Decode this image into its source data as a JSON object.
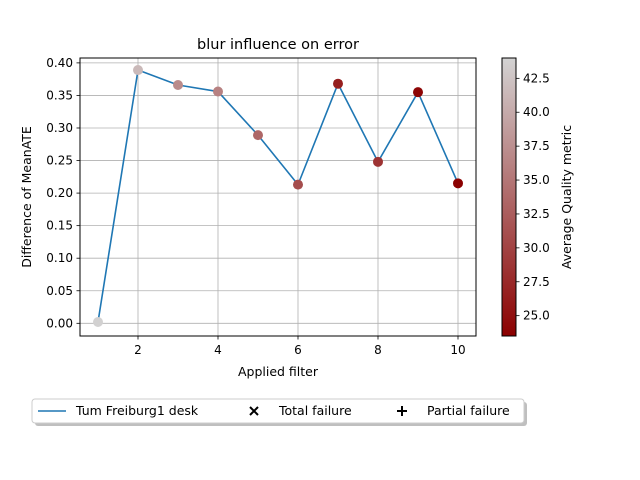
{
  "chart_data": {
    "type": "line",
    "title": "blur influence on error",
    "xlabel": "Applied filter",
    "ylabel": "Difference of MeanATE",
    "xlim": [
      0.55,
      10.45
    ],
    "ylim": [
      -0.0195,
      0.4075
    ],
    "xticks": [
      2,
      4,
      6,
      8,
      10
    ],
    "yticks": [
      0.0,
      0.05,
      0.1,
      0.15,
      0.2,
      0.25,
      0.3,
      0.35,
      0.4
    ],
    "ytick_labels": [
      "0.00",
      "0.05",
      "0.10",
      "0.15",
      "0.20",
      "0.25",
      "0.30",
      "0.35",
      "0.40"
    ],
    "grid": true,
    "series": [
      {
        "name": "Tum Freiburg1 desk",
        "color": "#1f77b4",
        "x": [
          1,
          2,
          3,
          4,
          5,
          6,
          7,
          8,
          9,
          10
        ],
        "y": [
          0.002,
          0.389,
          0.366,
          0.356,
          0.289,
          0.213,
          0.368,
          0.248,
          0.355,
          0.215
        ],
        "quality_metric": [
          43.8,
          41.5,
          37.0,
          36.0,
          33.5,
          31.0,
          26.5,
          28.5,
          24.0,
          23.6
        ]
      }
    ],
    "colorbar": {
      "label": "Average Quality metric",
      "min": 23.5,
      "max": 44.0,
      "ticks": [
        25.0,
        27.5,
        30.0,
        32.5,
        35.0,
        37.5,
        40.0,
        42.5
      ],
      "tick_labels": [
        "25.0",
        "27.5",
        "30.0",
        "32.5",
        "35.0",
        "37.5",
        "40.0",
        "42.5"
      ],
      "color_low": "#8b0000",
      "color_high": "#d3d3d3"
    },
    "legend": {
      "placement": "bottom-center",
      "entries": [
        {
          "label": "Tum Freiburg1 desk",
          "marker": "line"
        },
        {
          "label": "Total failure",
          "marker": "x"
        },
        {
          "label": "Partial failure",
          "marker": "+"
        }
      ]
    }
  }
}
